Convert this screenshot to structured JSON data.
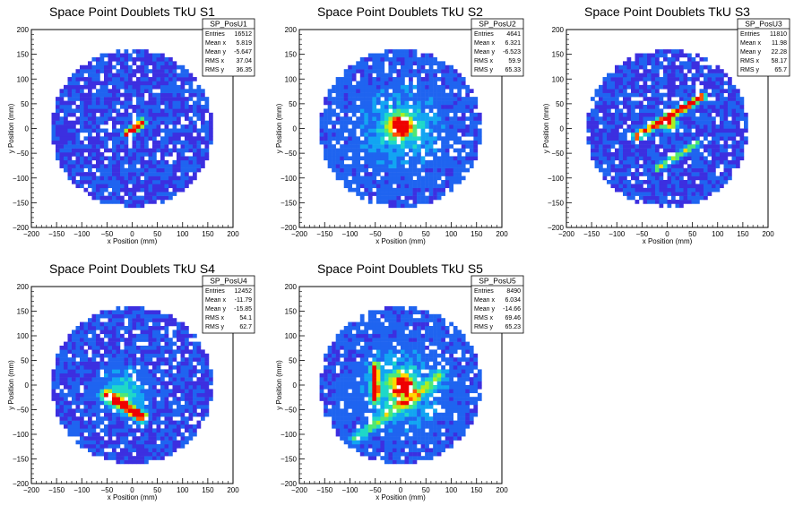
{
  "page": {
    "background": "#ffffff"
  },
  "colormap": [
    "#5a06c6",
    "#3c2fe0",
    "#1f64f0",
    "#12a5f2",
    "#1fd8c8",
    "#4fe874",
    "#aaee22",
    "#ffd800",
    "#ff5500",
    "#ee0000"
  ],
  "chart_data": [
    {
      "type": "heatmap",
      "title": "Space Point Doublets TkU S1",
      "xlabel": "x Position (mm)",
      "ylabel": "y Position (mm)",
      "xlim": [
        -200,
        200
      ],
      "ylim": [
        -200,
        200
      ],
      "xticks": [
        -200,
        -150,
        -100,
        -50,
        0,
        50,
        100,
        150,
        200
      ],
      "yticks": [
        -200,
        -150,
        -100,
        -50,
        0,
        50,
        100,
        150,
        200
      ],
      "stats": {
        "name": "SP_PosU1",
        "rows": [
          [
            "Entries",
            "16512"
          ],
          [
            "Mean x",
            "5.819"
          ],
          [
            "Mean y",
            "-5.647"
          ],
          [
            "RMS x",
            "37.04"
          ],
          [
            "RMS y",
            "36.35"
          ]
        ]
      },
      "distribution": {
        "disk_radius": 160,
        "background": 0.2,
        "components": [
          {
            "type": "line",
            "x1": -10,
            "y1": -10,
            "x2": 20,
            "y2": 12,
            "sigma": 5,
            "amp": 0.95
          }
        ]
      }
    },
    {
      "type": "heatmap",
      "title": "Space Point Doublets TkU S2",
      "xlabel": "x Position (mm)",
      "ylabel": "y Position (mm)",
      "xlim": [
        -200,
        200
      ],
      "ylim": [
        -200,
        200
      ],
      "xticks": [
        -200,
        -150,
        -100,
        -50,
        0,
        50,
        100,
        150,
        200
      ],
      "yticks": [
        -200,
        -150,
        -100,
        -50,
        0,
        50,
        100,
        150,
        200
      ],
      "stats": {
        "name": "SP_PosU2",
        "rows": [
          [
            "Entries",
            "4641"
          ],
          [
            "Mean x",
            "6.321"
          ],
          [
            "Mean y",
            "-6.523"
          ],
          [
            "RMS x",
            "59.9"
          ],
          [
            "RMS y",
            "65.33"
          ]
        ]
      },
      "distribution": {
        "disk_radius": 160,
        "background": 0.22,
        "components": [
          {
            "type": "gauss",
            "x": 0,
            "y": 5,
            "sigma": 14,
            "amp": 0.95
          },
          {
            "type": "gauss",
            "x": 0,
            "y": 0,
            "sigma": 45,
            "amp": 0.22
          }
        ]
      }
    },
    {
      "type": "heatmap",
      "title": "Space Point Doublets TkU S3",
      "xlabel": "x Position (mm)",
      "ylabel": "y Position (mm)",
      "xlim": [
        -200,
        200
      ],
      "ylim": [
        -200,
        200
      ],
      "xticks": [
        -200,
        -150,
        -100,
        -50,
        0,
        50,
        100,
        150,
        200
      ],
      "yticks": [
        -200,
        -150,
        -100,
        -50,
        0,
        50,
        100,
        150,
        200
      ],
      "stats": {
        "name": "SP_PosU3",
        "rows": [
          [
            "Entries",
            "11810"
          ],
          [
            "Mean x",
            "11.98"
          ],
          [
            "Mean y",
            "22.28"
          ],
          [
            "RMS x",
            "58.17"
          ],
          [
            "RMS y",
            "65.7"
          ]
        ]
      },
      "distribution": {
        "disk_radius": 160,
        "background": 0.2,
        "components": [
          {
            "type": "line",
            "x1": -60,
            "y1": -15,
            "x2": 70,
            "y2": 65,
            "sigma": 5,
            "amp": 0.8
          },
          {
            "type": "line",
            "x1": -20,
            "y1": -80,
            "x2": 60,
            "y2": -30,
            "sigma": 4,
            "amp": 0.45
          },
          {
            "type": "gauss",
            "x": 5,
            "y": 10,
            "sigma": 10,
            "amp": 0.6
          }
        ]
      }
    },
    {
      "type": "heatmap",
      "title": "Space Point Doublets TkU S4",
      "xlabel": "x Position (mm)",
      "ylabel": "y Position (mm)",
      "xlim": [
        -200,
        200
      ],
      "ylim": [
        -200,
        200
      ],
      "xticks": [
        -200,
        -150,
        -100,
        -50,
        0,
        50,
        100,
        150,
        200
      ],
      "yticks": [
        -200,
        -150,
        -100,
        -50,
        0,
        50,
        100,
        150,
        200
      ],
      "stats": {
        "name": "SP_PosU4",
        "rows": [
          [
            "Entries",
            "12452"
          ],
          [
            "Mean x",
            "-11.79"
          ],
          [
            "Mean y",
            "-15.85"
          ],
          [
            "RMS x",
            "54.1"
          ],
          [
            "RMS y",
            "62.7"
          ]
        ]
      },
      "distribution": {
        "disk_radius": 160,
        "background": 0.2,
        "components": [
          {
            "type": "line",
            "x1": -50,
            "y1": -20,
            "x2": 20,
            "y2": -65,
            "sigma": 7,
            "amp": 0.9
          },
          {
            "type": "gauss",
            "x": -15,
            "y": -10,
            "sigma": 28,
            "amp": 0.25
          }
        ]
      }
    },
    {
      "type": "heatmap",
      "title": "Space Point Doublets TkU S5",
      "xlabel": "x Position (mm)",
      "ylabel": "y Position (mm)",
      "xlim": [
        -200,
        200
      ],
      "ylim": [
        -200,
        200
      ],
      "xticks": [
        -200,
        -150,
        -100,
        -50,
        0,
        50,
        100,
        150,
        200
      ],
      "yticks": [
        -200,
        -150,
        -100,
        -50,
        0,
        50,
        100,
        150,
        200
      ],
      "stats": {
        "name": "SP_PosU5",
        "rows": [
          [
            "Entries",
            "8490"
          ],
          [
            "Mean x",
            "6.034"
          ],
          [
            "Mean y",
            "-14.66"
          ],
          [
            "RMS x",
            "69.46"
          ],
          [
            "RMS y",
            "65.23"
          ]
        ]
      },
      "distribution": {
        "disk_radius": 160,
        "background": 0.22,
        "components": [
          {
            "type": "gauss",
            "x": 5,
            "y": 0,
            "sigma": 15,
            "amp": 0.85
          },
          {
            "type": "line",
            "x1": -50,
            "y1": 40,
            "x2": -50,
            "y2": -30,
            "sigma": 5,
            "amp": 0.7
          },
          {
            "type": "line",
            "x1": -90,
            "y1": -110,
            "x2": 0,
            "y2": -40,
            "sigma": 6,
            "amp": 0.35
          },
          {
            "type": "line",
            "x1": 10,
            "y1": -40,
            "x2": 80,
            "y2": 20,
            "sigma": 6,
            "amp": 0.35
          },
          {
            "type": "gauss",
            "x": 0,
            "y": -10,
            "sigma": 45,
            "amp": 0.25
          }
        ]
      }
    }
  ]
}
